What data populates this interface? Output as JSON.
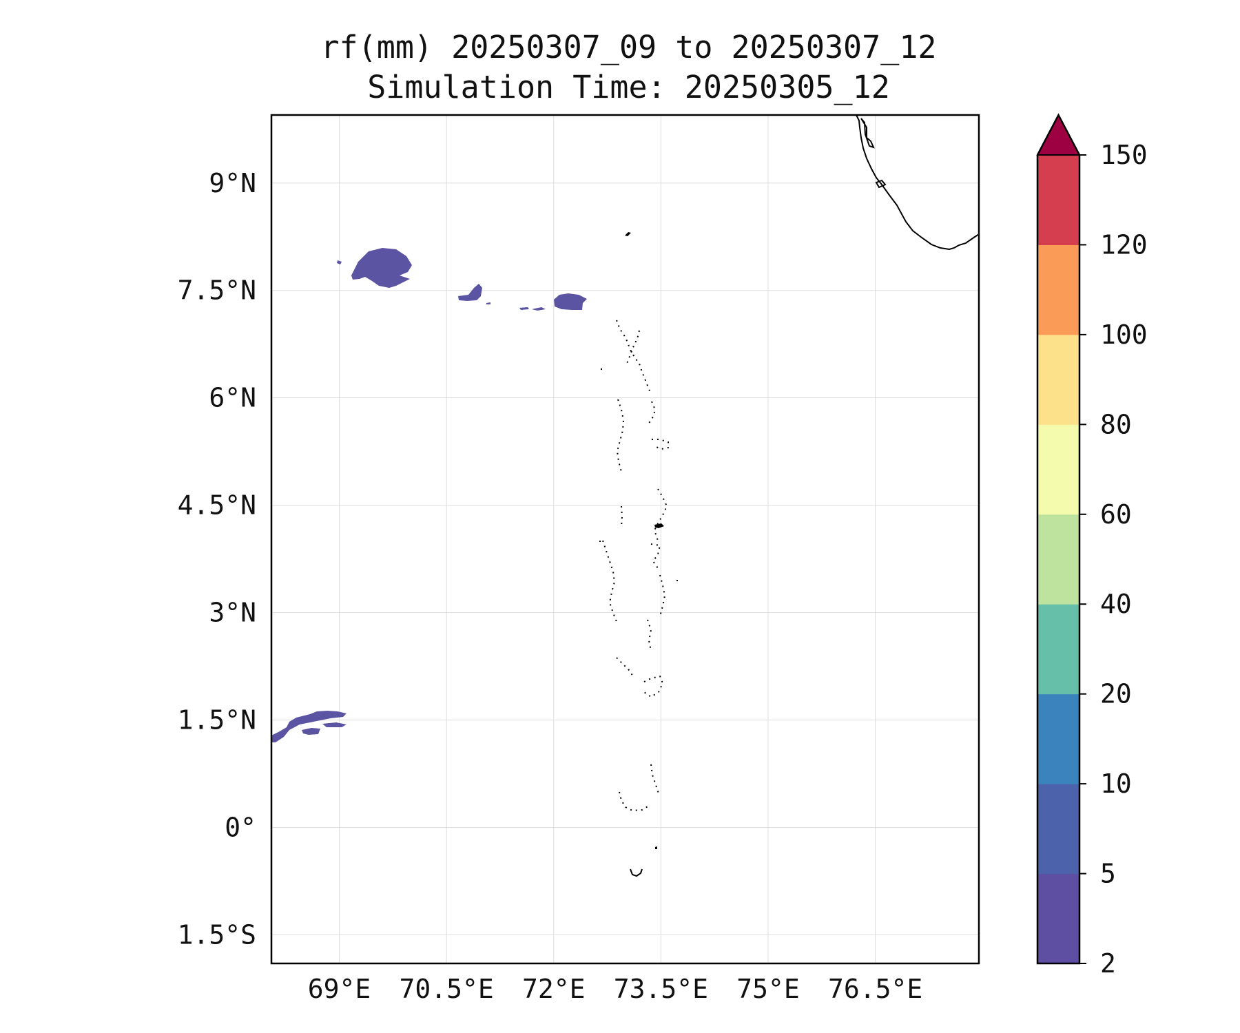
{
  "title": {
    "line1": "rf(mm) 20250307_09 to 20250307_12",
    "line2": "Simulation Time: 20250305_12"
  },
  "map": {
    "lon_range": [
      68.05,
      77.95
    ],
    "lat_range": [
      -1.9,
      9.95
    ],
    "lon_ticks": [
      {
        "value": 69,
        "label": "69°E"
      },
      {
        "value": 70.5,
        "label": "70.5°E"
      },
      {
        "value": 72,
        "label": "72°E"
      },
      {
        "value": 73.5,
        "label": "73.5°E"
      },
      {
        "value": 75,
        "label": "75°E"
      },
      {
        "value": 76.5,
        "label": "76.5°E"
      }
    ],
    "lat_ticks": [
      {
        "value": 9,
        "label": "9°N"
      },
      {
        "value": 7.5,
        "label": "7.5°N"
      },
      {
        "value": 6,
        "label": "6°N"
      },
      {
        "value": 4.5,
        "label": "4.5°N"
      },
      {
        "value": 3,
        "label": "3°N"
      },
      {
        "value": 1.5,
        "label": "1.5°N"
      },
      {
        "value": 0,
        "label": "0°"
      },
      {
        "value": -1.5,
        "label": "1.5°S"
      }
    ],
    "grid": true,
    "coastline_color": "#000000",
    "gridline_color": "#dddddd",
    "rain_fill_color": "#5b54a2"
  },
  "colorbar": {
    "levels": [
      {
        "label": "2",
        "color": "#5e4fa2"
      },
      {
        "label": "5",
        "color": "#4c62ab"
      },
      {
        "label": "10",
        "color": "#3a83bc"
      },
      {
        "label": "20",
        "color": "#65bfa9"
      },
      {
        "label": "40",
        "color": "#bde39f"
      },
      {
        "label": "60",
        "color": "#f4fbad"
      },
      {
        "label": "80",
        "color": "#fde08a"
      },
      {
        "label": "100",
        "color": "#fa9b57"
      },
      {
        "label": "120",
        "color": "#d53e4f"
      },
      {
        "label": "150",
        "color": "#9e0142"
      }
    ],
    "extend": "max"
  }
}
